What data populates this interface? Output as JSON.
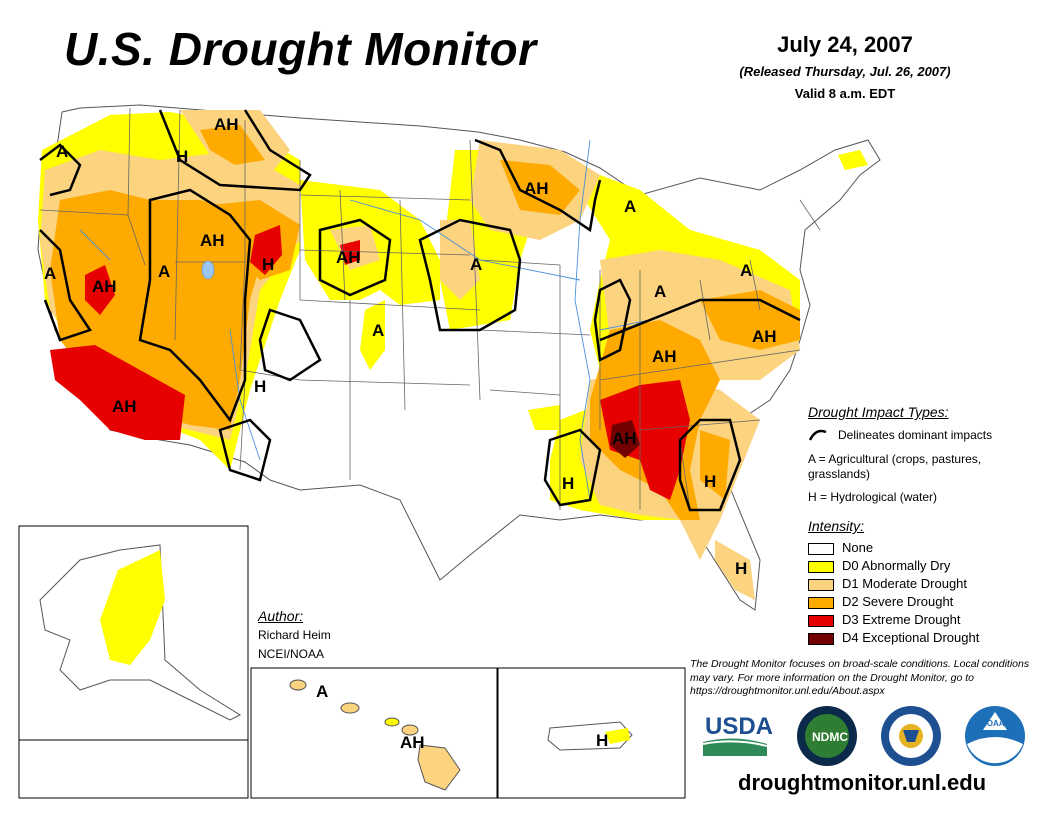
{
  "header": {
    "title": "U.S. Drought Monitor",
    "date": "July 24, 2007",
    "released": "(Released Thursday, Jul. 26, 2007)",
    "valid": "Valid 8 a.m. EDT"
  },
  "impact_types": {
    "heading": "Drought Impact Types:",
    "delineates": "Delineates dominant impacts",
    "agricultural": "A = Agricultural (crops, pastures, grasslands)",
    "hydrological": "H = Hydrological (water)"
  },
  "intensity": {
    "heading": "Intensity:",
    "levels": [
      {
        "label": "None",
        "color": "#ffffff"
      },
      {
        "label": "D0 Abnormally Dry",
        "color": "#ffff00"
      },
      {
        "label": "D1 Moderate Drought",
        "color": "#fcd37f"
      },
      {
        "label": "D2 Severe Drought",
        "color": "#ffaa00"
      },
      {
        "label": "D3 Extreme Drought",
        "color": "#e60000"
      },
      {
        "label": "D4 Exceptional Drought",
        "color": "#730000"
      }
    ]
  },
  "author": {
    "heading": "Author:",
    "name": "Richard Heim",
    "org": "NCEI/NOAA"
  },
  "disclaimer": "The Drought Monitor focuses on broad-scale conditions. Local conditions may vary. For more information on the Drought Monitor, go to https://droughtmonitor.unl.edu/About.aspx",
  "website": "droughtmonitor.unl.edu",
  "logos": {
    "usda": "USDA",
    "ndmc": "NDMC",
    "noaa": "NOAA"
  },
  "map_labels": {
    "a": "A",
    "h": "H",
    "ah": "AH"
  }
}
